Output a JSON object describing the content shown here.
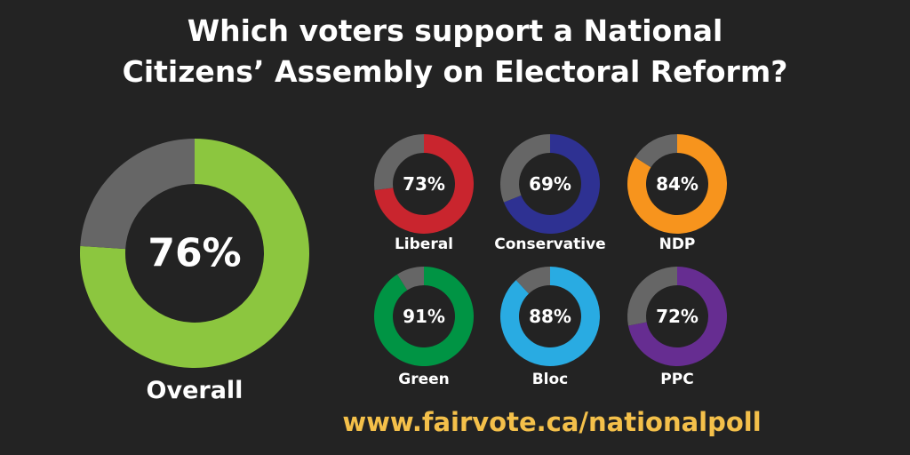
{
  "chart_data": {
    "type": "pie",
    "title_lines": [
      "Which voters support a National",
      "Citizens’ Assembly on Electoral Reform?"
    ],
    "remainder_color": "#666666",
    "overall": {
      "name": "Overall",
      "value": 76,
      "label": "76%",
      "color": "#8cc63f"
    },
    "parties": [
      {
        "name": "Liberal",
        "value": 73,
        "label": "73%",
        "color": "#c9252e"
      },
      {
        "name": "Conservative",
        "value": 69,
        "label": "69%",
        "color": "#2e3192"
      },
      {
        "name": "NDP",
        "value": 84,
        "label": "84%",
        "color": "#f7941d"
      },
      {
        "name": "Green",
        "value": 91,
        "label": "91%",
        "color": "#009444"
      },
      {
        "name": "Bloc",
        "value": 88,
        "label": "88%",
        "color": "#29abe2"
      },
      {
        "name": "PPC",
        "value": 72,
        "label": "72%",
        "color": "#662d91"
      }
    ]
  },
  "footer": {
    "url": "www.fairvote.ca/nationalpoll"
  }
}
